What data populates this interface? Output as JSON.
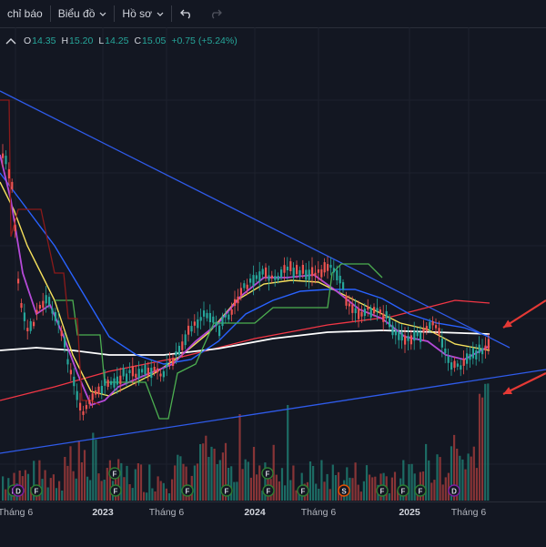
{
  "toolbar": {
    "indicators_label": "chỉ báo",
    "chart_label": "Biểu đồ",
    "profile_label": "Hồ sơ",
    "undo_icon": "undo-icon",
    "redo_icon": "redo-icon"
  },
  "legend": {
    "open_label": "O",
    "open": "14.35",
    "high_label": "H",
    "high": "15.20",
    "low_label": "L",
    "low": "14.25",
    "close_label": "C",
    "close": "15.05",
    "change": "+0.75 (+5.24%)"
  },
  "x_axis": {
    "labels": [
      "Tháng 6",
      "2023",
      "Tháng 6",
      "2024",
      "Tháng 6",
      "2025",
      "Tháng 6"
    ],
    "year_labels": [
      "2023",
      "2024",
      "2025"
    ]
  },
  "events": {
    "markers": [
      "F",
      "D",
      "F",
      "F",
      "F",
      "F",
      "F",
      "F",
      "F",
      "F",
      "S",
      "F",
      "F"
    ]
  },
  "colors": {
    "background": "#131722",
    "up": "#26a69a",
    "down": "#ef5350",
    "ma_white": "#ffffff",
    "ma_yellow": "#f5e05c",
    "ma_purple": "#b54ad8",
    "ma_blue": "#2962ff",
    "ma_red": "#f23645",
    "ma_green": "#4caf50",
    "trendline": "#2f5bea",
    "arrow": "#e53935"
  }
}
